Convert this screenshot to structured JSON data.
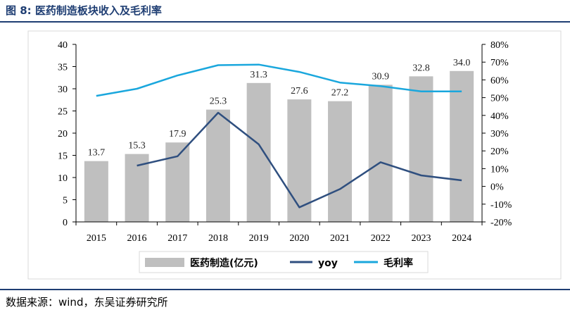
{
  "figure": {
    "title": "图 8:  医药制造板块收入及毛利率",
    "source": "数据来源：wind，东吴证券研究所"
  },
  "colors": {
    "bar": "#bfbfbf",
    "yoy": "#2f4f7f",
    "margin": "#1aa7dd",
    "title": "#1f3e73"
  },
  "chart_data": {
    "type": "bar+line",
    "categories": [
      "2015",
      "2016",
      "2017",
      "2018",
      "2019",
      "2020",
      "2021",
      "2022",
      "2023",
      "2024"
    ],
    "y_left": {
      "ylim": [
        0,
        40
      ],
      "ticks": [
        "0",
        "5",
        "10",
        "15",
        "20",
        "25",
        "30",
        "35",
        "40"
      ]
    },
    "y_right": {
      "ylim": [
        -20,
        80
      ],
      "ticks": [
        "-20%",
        "-10%",
        "0%",
        "10%",
        "20%",
        "30%",
        "40%",
        "50%",
        "60%",
        "70%",
        "80%"
      ]
    },
    "bars": {
      "name": "医药制造(亿元)",
      "values": [
        13.7,
        15.3,
        17.9,
        25.3,
        31.3,
        27.6,
        27.2,
        30.9,
        32.8,
        34.0
      ],
      "labels": [
        "13.7",
        "15.3",
        "17.9",
        "25.3",
        "31.3",
        "27.6",
        "27.2",
        "30.9",
        "32.8",
        "34.0"
      ]
    },
    "lines": [
      {
        "name": "yoy",
        "axis": "right",
        "values": [
          null,
          11.7,
          17,
          41.5,
          23.7,
          -11.8,
          -1.5,
          13.6,
          6.2,
          3.4
        ]
      },
      {
        "name": "毛利率",
        "axis": "right",
        "values": [
          51,
          55,
          62.5,
          68.3,
          68.6,
          64.5,
          58.5,
          56.5,
          53.5,
          53.5
        ]
      }
    ],
    "legend_position": "bottom",
    "grid": false
  }
}
